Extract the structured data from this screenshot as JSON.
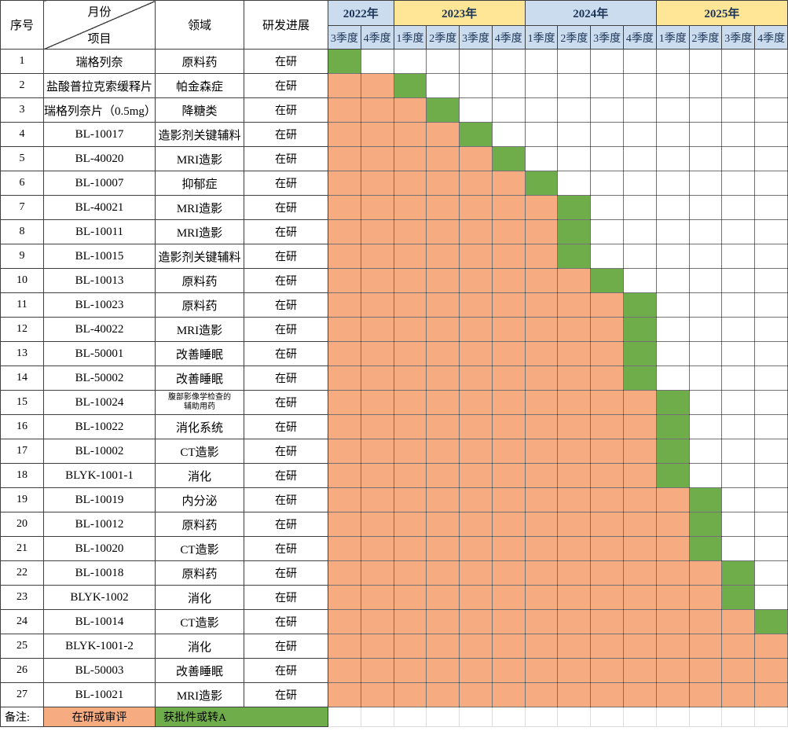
{
  "header": {
    "index_label": "序号",
    "diagonal_top_label": "月份",
    "diagonal_bottom_label": "项目",
    "field_label": "领域",
    "progress_label": "研发进展",
    "year_groups": [
      {
        "label": "2022年",
        "fill": "blue",
        "quarters": [
          "3季度",
          "4季度"
        ]
      },
      {
        "label": "2023年",
        "fill": "yellow",
        "quarters": [
          "1季度",
          "2季度",
          "3季度",
          "4季度"
        ]
      },
      {
        "label": "2024年",
        "fill": "blue",
        "quarters": [
          "1季度",
          "2季度",
          "3季度",
          "4季度"
        ]
      },
      {
        "label": "2025年",
        "fill": "yellow",
        "quarters": [
          "1季度",
          "2季度",
          "3季度",
          "4季度"
        ]
      }
    ]
  },
  "legend": {
    "note_label": "备注:",
    "in_progress_label": "在研或审评",
    "approved_label": "获批件或转A"
  },
  "colors": {
    "in_progress_orange": "#f6ab80",
    "approved_green": "#6fad4b",
    "year_blue": "#cbdcee",
    "year_yellow": "#ffe596",
    "header_text_navy": "#1c3557"
  },
  "chart_data": {
    "type": "table",
    "subtype": "gantt-schedule",
    "quarter_columns": [
      "2022Q3",
      "2022Q4",
      "2023Q1",
      "2023Q2",
      "2023Q3",
      "2023Q4",
      "2024Q1",
      "2024Q2",
      "2024Q3",
      "2024Q4",
      "2025Q1",
      "2025Q2",
      "2025Q3",
      "2025Q4"
    ],
    "status_legend": {
      "orange": "在研或审评",
      "green": "获批件或转A"
    },
    "rows": [
      {
        "no": "1",
        "project": "瑞格列奈",
        "field": "原料药",
        "progress": "在研",
        "orange_count": 0,
        "green_col": 1
      },
      {
        "no": "2",
        "project": "盐酸普拉克索缓释片",
        "field": "帕金森症",
        "progress": "在研",
        "orange_count": 2,
        "green_col": 3
      },
      {
        "no": "3",
        "project": "瑞格列奈片（0.5mg）",
        "field": "降糖类",
        "progress": "在研",
        "orange_count": 3,
        "green_col": 4
      },
      {
        "no": "4",
        "project": "BL-10017",
        "field": "造影剂关键辅料",
        "progress": "在研",
        "orange_count": 4,
        "green_col": 5
      },
      {
        "no": "5",
        "project": "BL-40020",
        "field": "MRI造影",
        "progress": "在研",
        "orange_count": 5,
        "green_col": 6
      },
      {
        "no": "6",
        "project": "BL-10007",
        "field": "抑郁症",
        "progress": "在研",
        "orange_count": 6,
        "green_col": 7
      },
      {
        "no": "7",
        "project": "BL-40021",
        "field": "MRI造影",
        "progress": "在研",
        "orange_count": 7,
        "green_col": 8
      },
      {
        "no": "8",
        "project": "BL-10011",
        "field": "MRI造影",
        "progress": "在研",
        "orange_count": 7,
        "green_col": 8
      },
      {
        "no": "9",
        "project": "BL-10015",
        "field": "造影剂关键辅料",
        "progress": "在研",
        "orange_count": 7,
        "green_col": 8
      },
      {
        "no": "10",
        "project": "BL-10013",
        "field": "原料药",
        "progress": "在研",
        "orange_count": 8,
        "green_col": 9
      },
      {
        "no": "11",
        "project": "BL-10023",
        "field": "原料药",
        "progress": "在研",
        "orange_count": 9,
        "green_col": 10
      },
      {
        "no": "12",
        "project": "BL-40022",
        "field": "MRI造影",
        "progress": "在研",
        "orange_count": 9,
        "green_col": 10
      },
      {
        "no": "13",
        "project": "BL-50001",
        "field": "改善睡眠",
        "progress": "在研",
        "orange_count": 9,
        "green_col": 10
      },
      {
        "no": "14",
        "project": "BL-50002",
        "field": "改善睡眠",
        "progress": "在研",
        "orange_count": 9,
        "green_col": 10
      },
      {
        "no": "15",
        "project": "BL-10024",
        "field": "腹部影像学检查的\n辅助用药",
        "field_small": true,
        "progress": "在研",
        "orange_count": 10,
        "green_col": 11
      },
      {
        "no": "16",
        "project": "BL-10022",
        "field": "消化系统",
        "progress": "在研",
        "orange_count": 10,
        "green_col": 11
      },
      {
        "no": "17",
        "project": "BL-10002",
        "field": "CT造影",
        "progress": "在研",
        "orange_count": 10,
        "green_col": 11
      },
      {
        "no": "18",
        "project": "BLYK-1001-1",
        "field": "消化",
        "progress": "在研",
        "orange_count": 10,
        "green_col": 11
      },
      {
        "no": "19",
        "project": "BL-10019",
        "field": "内分泌",
        "progress": "在研",
        "orange_count": 11,
        "green_col": 12
      },
      {
        "no": "20",
        "project": "BL-10012",
        "field": "原料药",
        "progress": "在研",
        "orange_count": 11,
        "green_col": 12
      },
      {
        "no": "21",
        "project": "BL-10020",
        "field": "CT造影",
        "progress": "在研",
        "orange_count": 11,
        "green_col": 12
      },
      {
        "no": "22",
        "project": "BL-10018",
        "field": "原料药",
        "progress": "在研",
        "orange_count": 12,
        "green_col": 13
      },
      {
        "no": "23",
        "project": "BLYK-1002",
        "field": "消化",
        "progress": "在研",
        "orange_count": 12,
        "green_col": 13
      },
      {
        "no": "24",
        "project": "BL-10014",
        "field": "CT造影",
        "progress": "在研",
        "orange_count": 13,
        "green_col": 14
      },
      {
        "no": "25",
        "project": "BLYK-1001-2",
        "field": "消化",
        "progress": "在研",
        "orange_count": 14,
        "green_col": 0
      },
      {
        "no": "26",
        "project": "BL-50003",
        "field": "改善睡眠",
        "progress": "在研",
        "orange_count": 14,
        "green_col": 0
      },
      {
        "no": "27",
        "project": "BL-10021",
        "field": "MRI造影",
        "progress": "在研",
        "orange_count": 14,
        "green_col": 0
      }
    ]
  }
}
